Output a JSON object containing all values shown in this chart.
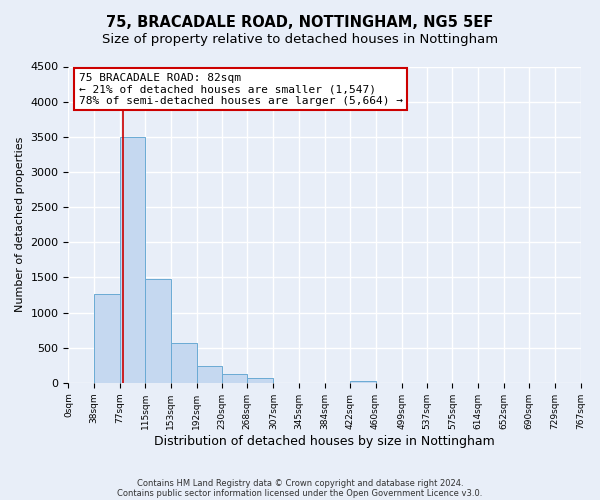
{
  "title": "75, BRACADALE ROAD, NOTTINGHAM, NG5 5EF",
  "subtitle": "Size of property relative to detached houses in Nottingham",
  "xlabel": "Distribution of detached houses by size in Nottingham",
  "ylabel": "Number of detached properties",
  "bar_edges": [
    0,
    38,
    77,
    115,
    153,
    192,
    230,
    268,
    307,
    345,
    384,
    422,
    460,
    499,
    537,
    575,
    614,
    652,
    690,
    729,
    767
  ],
  "bar_heights": [
    0,
    1270,
    3500,
    1480,
    570,
    240,
    130,
    70,
    0,
    0,
    0,
    30,
    0,
    0,
    0,
    0,
    0,
    0,
    0,
    0
  ],
  "bar_color": "#c5d8f0",
  "bar_edge_color": "#6aaad4",
  "property_size": 82,
  "property_line_color": "#cc0000",
  "annotation_line1": "75 BRACADALE ROAD: 82sqm",
  "annotation_line2": "← 21% of detached houses are smaller (1,547)",
  "annotation_line3": "78% of semi-detached houses are larger (5,664) →",
  "annotation_box_color": "#ffffff",
  "annotation_box_edge": "#cc0000",
  "ylim": [
    0,
    4500
  ],
  "yticks": [
    0,
    500,
    1000,
    1500,
    2000,
    2500,
    3000,
    3500,
    4000,
    4500
  ],
  "xlim_max": 767,
  "tick_labels": [
    "0sqm",
    "38sqm",
    "77sqm",
    "115sqm",
    "153sqm",
    "192sqm",
    "230sqm",
    "268sqm",
    "307sqm",
    "345sqm",
    "384sqm",
    "422sqm",
    "460sqm",
    "499sqm",
    "537sqm",
    "575sqm",
    "614sqm",
    "652sqm",
    "690sqm",
    "729sqm",
    "767sqm"
  ],
  "footer_line1": "Contains HM Land Registry data © Crown copyright and database right 2024.",
  "footer_line2": "Contains public sector information licensed under the Open Government Licence v3.0.",
  "background_color": "#e8eef8",
  "grid_color": "#ffffff",
  "title_fontsize": 10.5,
  "subtitle_fontsize": 9.5,
  "xlabel_fontsize": 9,
  "ylabel_fontsize": 8
}
